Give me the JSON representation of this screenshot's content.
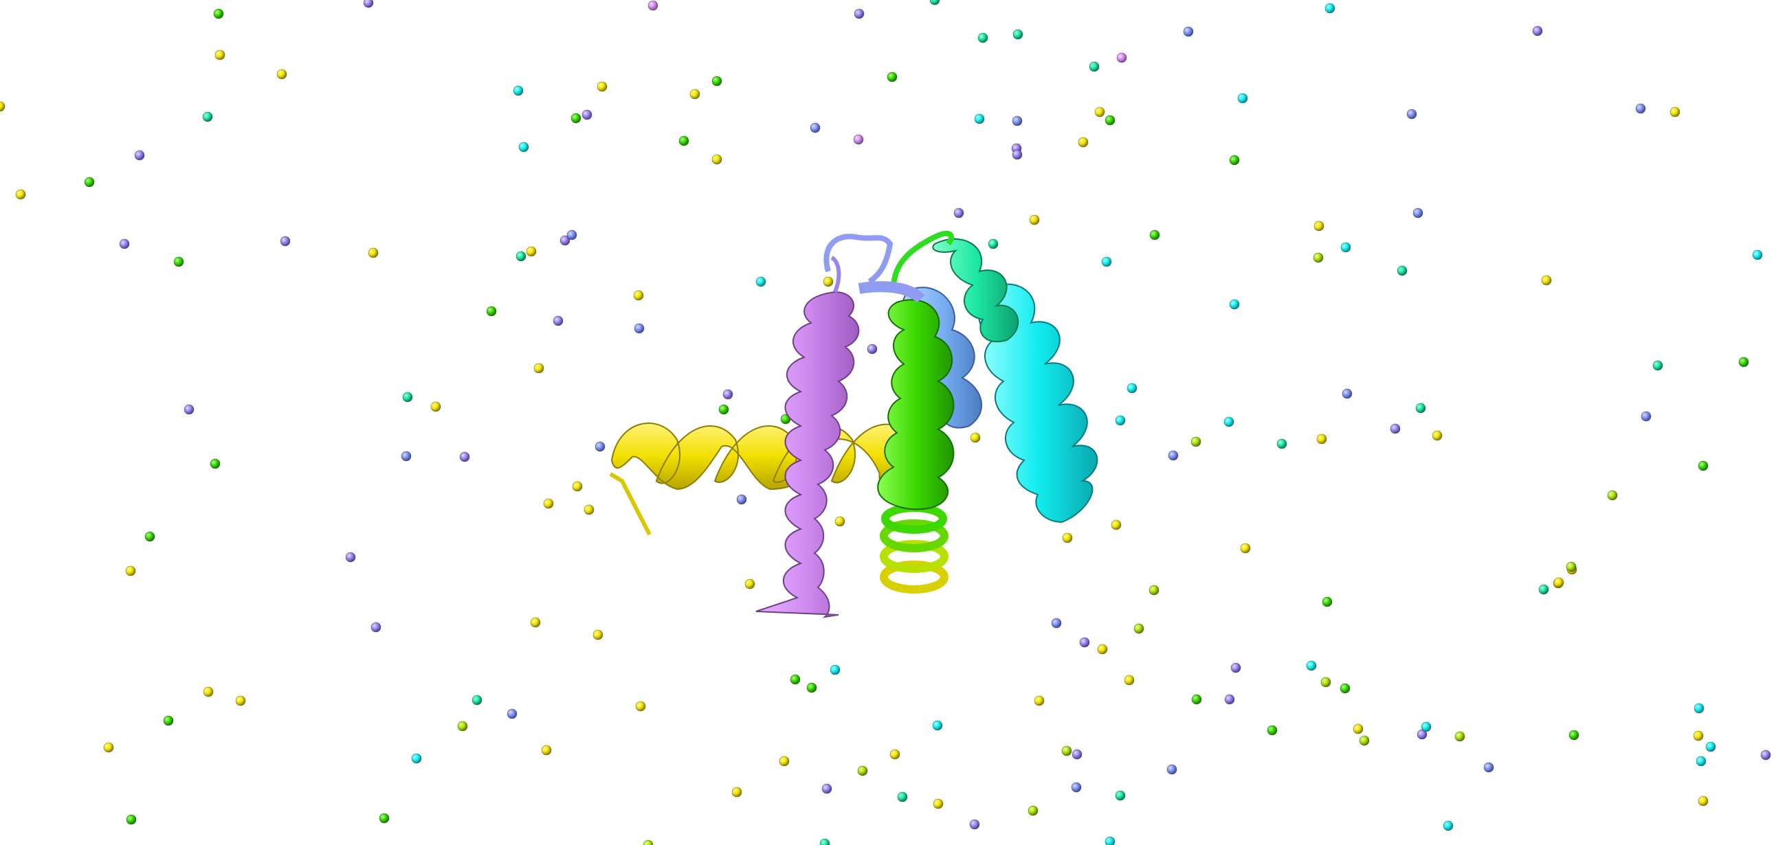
{
  "scene": {
    "subject": "protein-cartoon",
    "background_color": "#ffffff",
    "palette": {
      "yellow": "#f2e600",
      "violet": "#c78cf0",
      "purple": "#9a84ee",
      "blue": "#7f90f2",
      "sky": "#6fb4f0",
      "green": "#38d800",
      "spring": "#18e8a0",
      "cyan": "#10eef0"
    },
    "helices": [
      {
        "name": "helix-yellow",
        "color": "#f2e600"
      },
      {
        "name": "helix-violet",
        "color": "#d28cf0"
      },
      {
        "name": "helix-blue",
        "color": "#8ea0f4"
      },
      {
        "name": "helix-green",
        "color": "#3cdc00"
      },
      {
        "name": "helix-spring",
        "color": "#18e8a0"
      },
      {
        "name": "helix-cyan",
        "color": "#10eef0"
      }
    ]
  }
}
